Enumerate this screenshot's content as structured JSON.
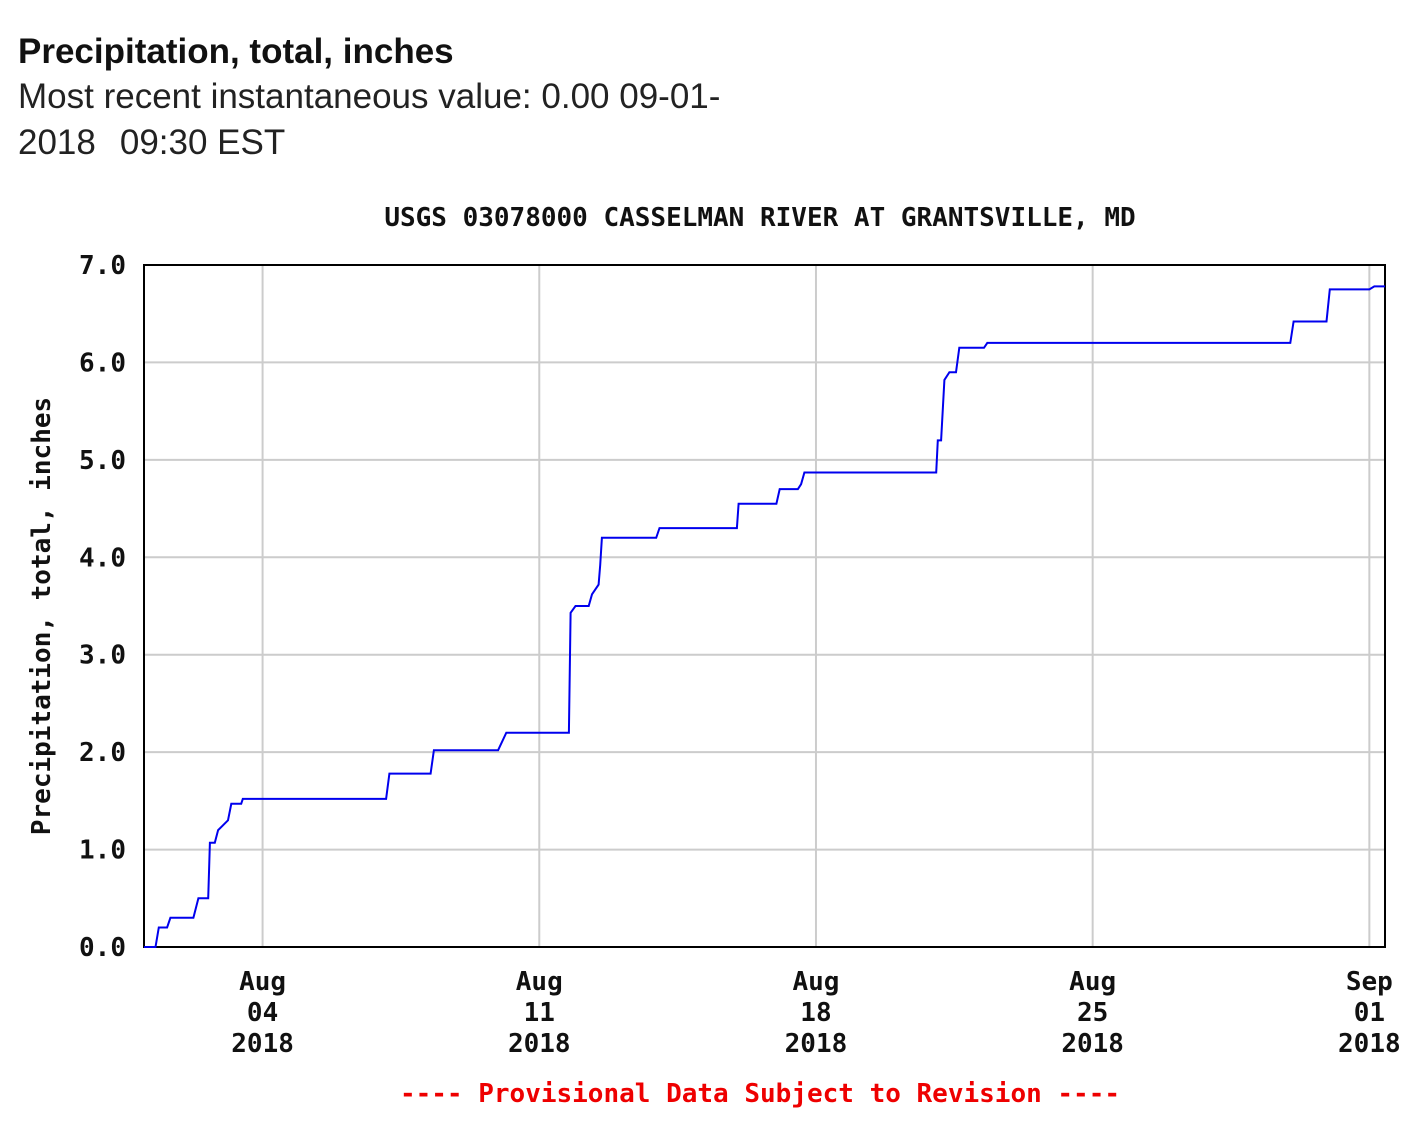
{
  "header": {
    "parameter_title": "Precipitation, total, inches",
    "recent_label": "Most recent instantaneous value:",
    "recent_value": "0.00",
    "recent_date_a": "09-01-",
    "recent_date_b": "2018",
    "recent_time": "09:30 EST"
  },
  "chart_data": {
    "type": "line",
    "title": "USGS 03078000 CASSELMAN RIVER AT GRANTSVILLE, MD",
    "ylabel": "Precipitation, total, inches",
    "xlabel": "",
    "ylim": [
      0.0,
      7.0
    ],
    "yticks": [
      "0.0",
      "1.0",
      "2.0",
      "3.0",
      "4.0",
      "5.0",
      "6.0",
      "7.0"
    ],
    "xlim": [
      "2018-08-01T00:00",
      "2018-09-01T09:30"
    ],
    "xticks": [
      {
        "date": "2018-08-04",
        "month": "Aug",
        "day": "04",
        "year": "2018"
      },
      {
        "date": "2018-08-11",
        "month": "Aug",
        "day": "11",
        "year": "2018"
      },
      {
        "date": "2018-08-18",
        "month": "Aug",
        "day": "18",
        "year": "2018"
      },
      {
        "date": "2018-08-25",
        "month": "Aug",
        "day": "25",
        "year": "2018"
      },
      {
        "date": "2018-09-01",
        "month": "Sep",
        "day": "01",
        "year": "2018"
      }
    ],
    "grid": true,
    "line_color": "#0000ee",
    "series": [
      {
        "points": [
          [
            "2018-08-01T00:00",
            0.0
          ],
          [
            "2018-08-01T07:00",
            0.0
          ],
          [
            "2018-08-01T09:00",
            0.2
          ],
          [
            "2018-08-01T14:00",
            0.2
          ],
          [
            "2018-08-01T16:00",
            0.3
          ],
          [
            "2018-08-02T06:00",
            0.3
          ],
          [
            "2018-08-02T09:00",
            0.5
          ],
          [
            "2018-08-02T15:00",
            0.5
          ],
          [
            "2018-08-02T16:00",
            1.07
          ],
          [
            "2018-08-02T19:00",
            1.07
          ],
          [
            "2018-08-02T21:00",
            1.2
          ],
          [
            "2018-08-03T00:00",
            1.25
          ],
          [
            "2018-08-03T03:00",
            1.3
          ],
          [
            "2018-08-03T05:00",
            1.47
          ],
          [
            "2018-08-03T11:00",
            1.47
          ],
          [
            "2018-08-03T12:00",
            1.52
          ],
          [
            "2018-08-07T03:00",
            1.52
          ],
          [
            "2018-08-07T05:00",
            1.78
          ],
          [
            "2018-08-08T06:00",
            1.78
          ],
          [
            "2018-08-08T08:00",
            2.02
          ],
          [
            "2018-08-09T23:00",
            2.02
          ],
          [
            "2018-08-10T04:00",
            2.2
          ],
          [
            "2018-08-11T18:00",
            2.2
          ],
          [
            "2018-08-11T19:00",
            3.43
          ],
          [
            "2018-08-11T22:00",
            3.5
          ],
          [
            "2018-08-12T06:00",
            3.5
          ],
          [
            "2018-08-12T08:00",
            3.62
          ],
          [
            "2018-08-12T12:00",
            3.72
          ],
          [
            "2018-08-12T13:00",
            3.92
          ],
          [
            "2018-08-12T14:00",
            4.2
          ],
          [
            "2018-08-13T23:00",
            4.2
          ],
          [
            "2018-08-14T01:00",
            4.3
          ],
          [
            "2018-08-16T00:00",
            4.3
          ],
          [
            "2018-08-16T01:00",
            4.55
          ],
          [
            "2018-08-17T00:00",
            4.55
          ],
          [
            "2018-08-17T02:00",
            4.7
          ],
          [
            "2018-08-17T13:00",
            4.7
          ],
          [
            "2018-08-17T15:00",
            4.75
          ],
          [
            "2018-08-17T17:00",
            4.87
          ],
          [
            "2018-08-21T01:00",
            4.87
          ],
          [
            "2018-08-21T02:00",
            5.2
          ],
          [
            "2018-08-21T04:00",
            5.2
          ],
          [
            "2018-08-21T06:00",
            5.82
          ],
          [
            "2018-08-21T09:00",
            5.9
          ],
          [
            "2018-08-21T13:00",
            5.9
          ],
          [
            "2018-08-21T15:00",
            6.15
          ],
          [
            "2018-08-22T06:00",
            6.15
          ],
          [
            "2018-08-22T08:00",
            6.2
          ],
          [
            "2018-08-30T00:00",
            6.2
          ],
          [
            "2018-08-30T02:00",
            6.42
          ],
          [
            "2018-08-30T22:00",
            6.42
          ],
          [
            "2018-08-31T00:00",
            6.75
          ],
          [
            "2018-09-01T00:00",
            6.75
          ],
          [
            "2018-09-01T03:00",
            6.78
          ],
          [
            "2018-09-01T09:30",
            6.78
          ]
        ]
      }
    ],
    "footer_note": "---- Provisional Data Subject to Revision ----",
    "footer_color": "#ee0000"
  }
}
